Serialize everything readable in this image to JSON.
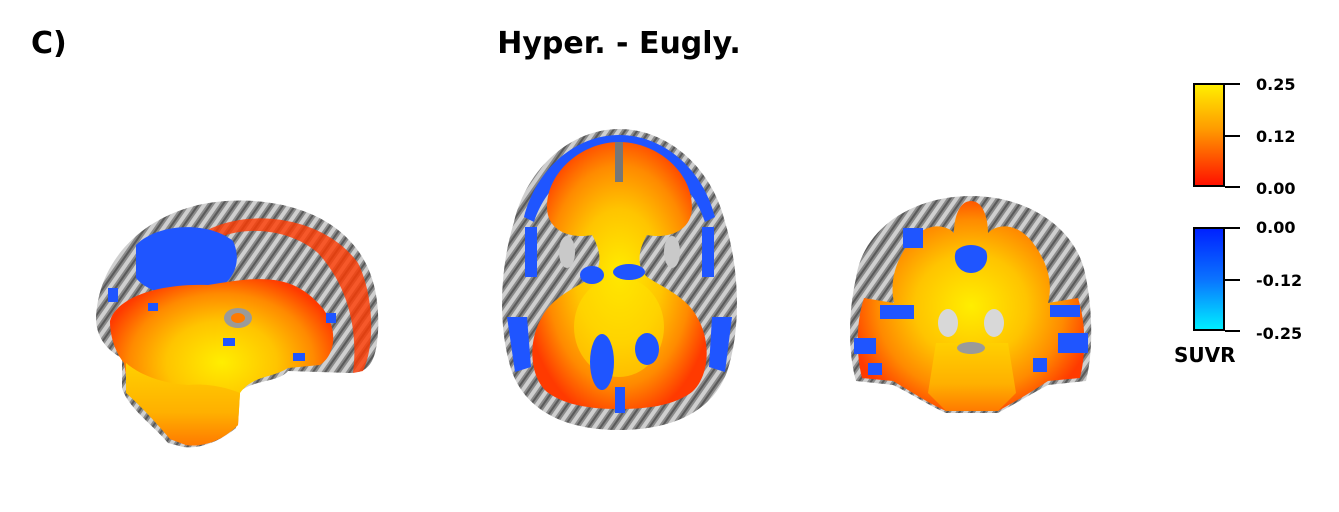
{
  "panel_label": "C)",
  "title": "Hyper. - Eugly.",
  "colorbar_positive": {
    "ticks": [
      "0.25",
      "0.12",
      "0.00"
    ],
    "colors": [
      "#ffee00",
      "#ff9900",
      "#ff1100"
    ]
  },
  "colorbar_negative": {
    "ticks": [
      "0.00",
      "-0.12",
      "-0.25"
    ],
    "colors": [
      "#0022ff",
      "#0a72ff",
      "#00eeff"
    ]
  },
  "colorbar_caption": "SUVR",
  "views": [
    "sagittal-slice",
    "axial-slice",
    "coronal-slice"
  ]
}
